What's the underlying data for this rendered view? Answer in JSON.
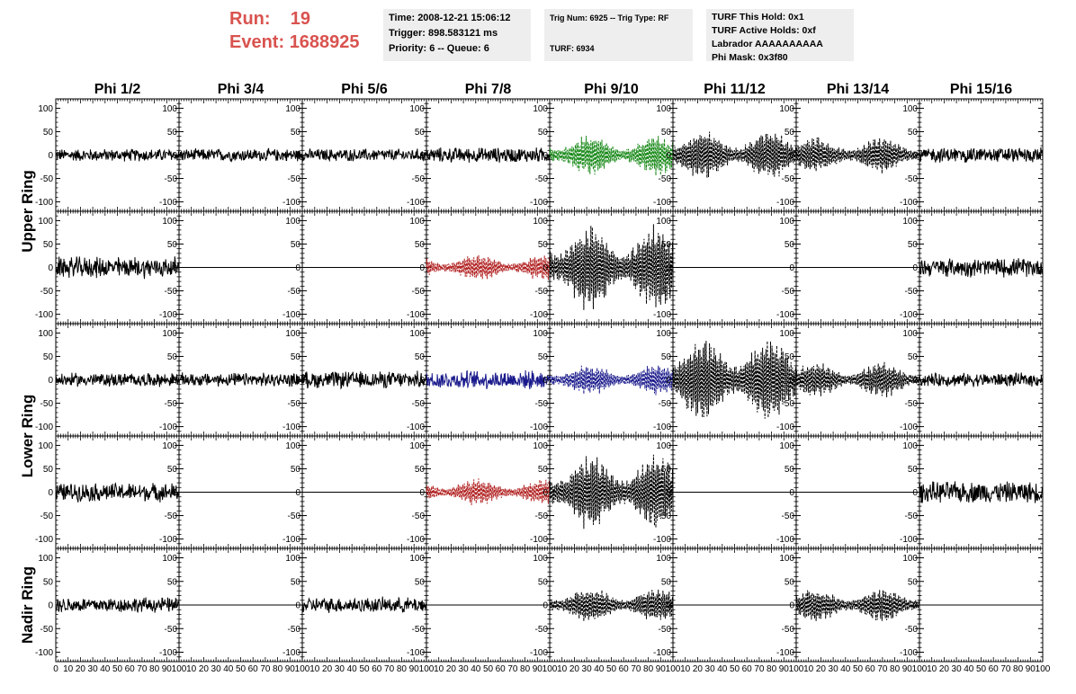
{
  "header": {
    "run_label": "Run:",
    "run_value": "19",
    "event_label": "Event:",
    "event_value": "1688925"
  },
  "info_boxes": [
    {
      "lines": [
        "Time: 2008-12-21 15:06:12",
        "Trigger: 898.583121 ms",
        "Priority: 6 -- Queue: 6"
      ]
    },
    {
      "lines": [
        "Trig Num: 6925 -- Trig Type: RF",
        "",
        "TURF: 6934"
      ]
    },
    {
      "lines": [
        "TURF This Hold: 0x1",
        "TURF Active Holds: 0xf",
        "Labrador AAAAAAAAAA",
        "Phi Mask: 0x3f80"
      ]
    }
  ],
  "colors": {
    "header_red": "#d9534f",
    "info_bg": "#eeeeee",
    "trace_black": "#000000",
    "trace_green": "#1a8a1a",
    "trace_red": "#b22222",
    "trace_blue": "#1a1a8c"
  },
  "chart_data": {
    "type": "line",
    "columns": [
      "Phi 1/2",
      "Phi 3/4",
      "Phi 5/6",
      "Phi 7/8",
      "Phi 9/10",
      "Phi 11/12",
      "Phi 13/14",
      "Phi 15/16"
    ],
    "ring_labels": [
      {
        "label": "Upper Ring",
        "rows": [
          0,
          1
        ]
      },
      {
        "label": "Lower Ring",
        "rows": [
          2,
          3
        ]
      },
      {
        "label": "Nadir Ring",
        "rows": [
          4
        ]
      }
    ],
    "y_ticks": [
      -100,
      -50,
      0,
      50,
      100
    ],
    "ylim": [
      -120,
      120
    ],
    "x_ticks": [
      0,
      10,
      20,
      30,
      40,
      50,
      60,
      70,
      80,
      90,
      100
    ],
    "xlim": [
      0,
      100
    ],
    "x_tick_labels_last_row": "0 10 20 30 40 50 60 70 80 90 100",
    "panels": [
      [
        {
          "style": "solid",
          "color": "black",
          "amplitude": 15
        },
        {
          "style": "solid",
          "color": "black",
          "amplitude": 15
        },
        {
          "style": "solid",
          "color": "black",
          "amplitude": 15
        },
        {
          "style": "solid",
          "color": "black",
          "amplitude": 18
        },
        {
          "style": "dashed",
          "color": "green",
          "amplitude": 45
        },
        {
          "style": "dashed",
          "color": "black",
          "amplitude": 55
        },
        {
          "style": "dashed",
          "color": "black",
          "amplitude": 40
        },
        {
          "style": "solid",
          "color": "black",
          "amplitude": 18
        }
      ],
      [
        {
          "style": "solid",
          "color": "black",
          "amplitude": 25
        },
        {
          "style": "flat",
          "color": "black",
          "amplitude": 0
        },
        {
          "style": "flat",
          "color": "black",
          "amplitude": 0
        },
        {
          "style": "dashed",
          "color": "red",
          "amplitude": 30
        },
        {
          "style": "dashed",
          "color": "black",
          "amplitude": 100
        },
        {
          "style": "flat",
          "color": "black",
          "amplitude": 0
        },
        {
          "style": "flat",
          "color": "black",
          "amplitude": 0
        },
        {
          "style": "solid",
          "color": "black",
          "amplitude": 22
        }
      ],
      [
        {
          "style": "solid",
          "color": "black",
          "amplitude": 16
        },
        {
          "style": "solid",
          "color": "black",
          "amplitude": 16
        },
        {
          "style": "solid",
          "color": "black",
          "amplitude": 20
        },
        {
          "style": "solid",
          "color": "blue",
          "amplitude": 22
        },
        {
          "style": "dashed",
          "color": "blue",
          "amplitude": 35
        },
        {
          "style": "dashed",
          "color": "black",
          "amplitude": 100
        },
        {
          "style": "dashed",
          "color": "black",
          "amplitude": 40
        },
        {
          "style": "solid",
          "color": "black",
          "amplitude": 16
        }
      ],
      [
        {
          "style": "solid",
          "color": "black",
          "amplitude": 22
        },
        {
          "style": "flat",
          "color": "black",
          "amplitude": 0
        },
        {
          "style": "flat",
          "color": "black",
          "amplitude": 0
        },
        {
          "style": "dashed",
          "color": "red",
          "amplitude": 30
        },
        {
          "style": "dashed",
          "color": "black",
          "amplitude": 85
        },
        {
          "style": "flat",
          "color": "black",
          "amplitude": 0
        },
        {
          "style": "flat",
          "color": "black",
          "amplitude": 0
        },
        {
          "style": "solid",
          "color": "black",
          "amplitude": 25
        }
      ],
      [
        {
          "style": "solid",
          "color": "black",
          "amplitude": 18
        },
        {
          "style": "flat",
          "color": "black",
          "amplitude": 0
        },
        {
          "style": "solid",
          "color": "black",
          "amplitude": 18
        },
        {
          "style": "flat",
          "color": "black",
          "amplitude": 0
        },
        {
          "style": "dashed",
          "color": "black",
          "amplitude": 40
        },
        {
          "style": "flat",
          "color": "black",
          "amplitude": 0
        },
        {
          "style": "dashed",
          "color": "black",
          "amplitude": 38
        },
        {
          "style": "flat",
          "color": "black",
          "amplitude": 0
        }
      ]
    ]
  }
}
